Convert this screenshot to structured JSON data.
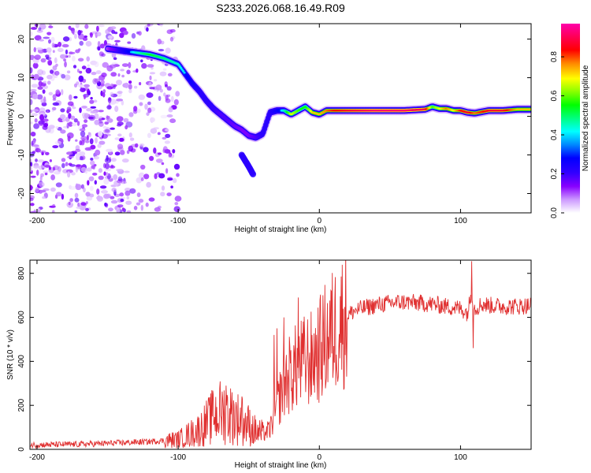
{
  "figure": {
    "title": "S233.2026.068.16.49.R09"
  },
  "colors": {
    "snr_line": "#e03030",
    "background": "#ffffff",
    "axis": "#000000"
  },
  "chart_data": [
    {
      "type": "heatmap",
      "title": "S233.2026.068.16.49.R09",
      "xlabel": "Height of straight line (km)",
      "ylabel": "Frequency (Hz)",
      "xlim": [
        -205,
        150
      ],
      "ylim": [
        -25,
        24
      ],
      "xticks": [
        -200,
        -100,
        0,
        100
      ],
      "yticks": [
        -20,
        -10,
        0,
        10,
        20
      ],
      "colorbar": {
        "label": "Normalized spectral amplitude",
        "range": [
          0.0,
          0.97
        ],
        "ticks": [
          0.0,
          0.2,
          0.4,
          0.6,
          0.8
        ]
      },
      "ridge": {
        "x": [
          -150,
          -140,
          -130,
          -120,
          -110,
          -100,
          -95,
          -90,
          -85,
          -80,
          -75,
          -70,
          -65,
          -60,
          -55,
          -50,
          -45,
          -40,
          -35,
          -30,
          -25,
          -20,
          -15,
          -10,
          -5,
          0,
          5,
          10,
          20,
          40,
          60,
          75,
          80,
          85,
          90,
          95,
          100,
          105,
          110,
          120,
          130,
          140,
          150
        ],
        "y": [
          17.5,
          17,
          16.5,
          16,
          15,
          13.5,
          11,
          8.5,
          6.5,
          4,
          2,
          0.5,
          -1,
          -2.5,
          -3.5,
          -5,
          -5.5,
          -4.5,
          1,
          1.5,
          1.5,
          0.5,
          1.5,
          2.5,
          1,
          0.5,
          1.5,
          1.5,
          1.5,
          1.5,
          1.5,
          1.8,
          2.5,
          2,
          2,
          1.5,
          1.5,
          1,
          0.8,
          1.5,
          1.5,
          1.8,
          1.8
        ]
      },
      "amplitude": [
        0.15,
        0.3,
        0.45,
        0.55,
        0.5,
        0.45,
        0.4,
        0.35,
        0.3,
        0.3,
        0.28,
        0.25,
        0.25,
        0.22,
        0.2,
        0.2,
        0.25,
        0.3,
        0.3,
        0.35,
        0.45,
        0.7,
        0.6,
        0.55,
        0.75,
        0.75,
        0.8,
        0.85,
        0.9,
        0.95,
        0.95,
        0.92,
        0.6,
        0.7,
        0.8,
        0.7,
        0.85,
        0.9,
        0.8,
        0.9,
        0.9,
        0.75,
        0.75
      ],
      "secondary_branch": {
        "x": [
          -55,
          -50,
          -47
        ],
        "y": [
          -10,
          -13,
          -15
        ]
      }
    },
    {
      "type": "line",
      "xlabel": "Height of straight line (km)",
      "ylabel": "SNR (10 * v/v)",
      "xlim": [
        -205,
        150
      ],
      "ylim": [
        0,
        860
      ],
      "xticks": [
        -200,
        -100,
        0,
        100
      ],
      "yticks": [
        0,
        200,
        400,
        600,
        800
      ],
      "series": [
        {
          "name": "SNR",
          "x": [
            -205,
            -180,
            -160,
            -140,
            -120,
            -110,
            -100,
            -95,
            -90,
            -85,
            -80,
            -75,
            -70,
            -65,
            -60,
            -55,
            -50,
            -45,
            -40,
            -35,
            -30,
            -25,
            -20,
            -15,
            -10,
            -5,
            0,
            5,
            10,
            15,
            20,
            25,
            30,
            40,
            50,
            60,
            70,
            80,
            90,
            100,
            105,
            108,
            110,
            115,
            120,
            130,
            140,
            150
          ],
          "y": [
            20,
            22,
            25,
            30,
            35,
            40,
            45,
            60,
            75,
            90,
            120,
            150,
            170,
            165,
            150,
            130,
            110,
            80,
            70,
            90,
            200,
            300,
            350,
            380,
            400,
            420,
            450,
            500,
            540,
            580,
            610,
            630,
            640,
            655,
            665,
            670,
            665,
            660,
            650,
            640,
            620,
            720,
            640,
            660,
            655,
            650,
            650,
            655
          ],
          "spikes": [
            {
              "x": -75,
              "y": 250
            },
            {
              "x": -66,
              "y": 290
            },
            {
              "x": -55,
              "y": 240
            },
            {
              "x": -32,
              "y": 520
            },
            {
              "x": -30,
              "y": 550
            },
            {
              "x": -25,
              "y": 600
            },
            {
              "x": -15,
              "y": 690
            },
            {
              "x": -5,
              "y": 520
            },
            {
              "x": 108,
              "y": 855
            },
            {
              "x": 109,
              "y": 460
            }
          ]
        }
      ]
    }
  ]
}
